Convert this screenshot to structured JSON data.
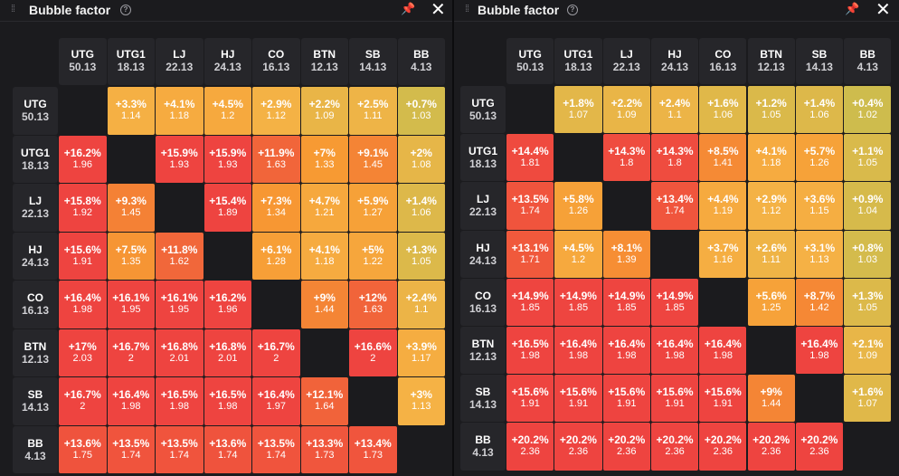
{
  "colors": {
    "stops": [
      "#c8be4e",
      "#f5b245",
      "#f79a33",
      "#f37a36",
      "#ee4440"
    ]
  },
  "left": {
    "title": "Bubble factor",
    "drag_icon": "drag-handle-icon",
    "help_icon": "help-icon",
    "help_glyph": "?",
    "pin_icon": "pin-icon",
    "pin_glyph": "📌",
    "close_icon": "close-icon",
    "close_glyph": "✕",
    "positions": [
      "UTG",
      "UTG1",
      "LJ",
      "HJ",
      "CO",
      "BTN",
      "SB",
      "BB"
    ],
    "stacks": [
      "50.13",
      "18.13",
      "22.13",
      "24.13",
      "16.13",
      "12.13",
      "14.13",
      "4.13"
    ],
    "rows": [
      [
        null,
        {
          "p": "+3.3%",
          "f": "1.14"
        },
        {
          "p": "+4.1%",
          "f": "1.18"
        },
        {
          "p": "+4.5%",
          "f": "1.2"
        },
        {
          "p": "+2.9%",
          "f": "1.12"
        },
        {
          "p": "+2.2%",
          "f": "1.09"
        },
        {
          "p": "+2.5%",
          "f": "1.11"
        },
        {
          "p": "+0.7%",
          "f": "1.03"
        }
      ],
      [
        {
          "p": "+16.2%",
          "f": "1.96"
        },
        null,
        {
          "p": "+15.9%",
          "f": "1.93"
        },
        {
          "p": "+15.9%",
          "f": "1.93"
        },
        {
          "p": "+11.9%",
          "f": "1.63"
        },
        {
          "p": "+7%",
          "f": "1.33"
        },
        {
          "p": "+9.1%",
          "f": "1.45"
        },
        {
          "p": "+2%",
          "f": "1.08"
        }
      ],
      [
        {
          "p": "+15.8%",
          "f": "1.92"
        },
        {
          "p": "+9.3%",
          "f": "1.45"
        },
        null,
        {
          "p": "+15.4%",
          "f": "1.89"
        },
        {
          "p": "+7.3%",
          "f": "1.34"
        },
        {
          "p": "+4.7%",
          "f": "1.21"
        },
        {
          "p": "+5.9%",
          "f": "1.27"
        },
        {
          "p": "+1.4%",
          "f": "1.06"
        }
      ],
      [
        {
          "p": "+15.6%",
          "f": "1.91"
        },
        {
          "p": "+7.5%",
          "f": "1.35"
        },
        {
          "p": "+11.8%",
          "f": "1.62"
        },
        null,
        {
          "p": "+6.1%",
          "f": "1.28"
        },
        {
          "p": "+4.1%",
          "f": "1.18"
        },
        {
          "p": "+5%",
          "f": "1.22"
        },
        {
          "p": "+1.3%",
          "f": "1.05"
        }
      ],
      [
        {
          "p": "+16.4%",
          "f": "1.98"
        },
        {
          "p": "+16.1%",
          "f": "1.95"
        },
        {
          "p": "+16.1%",
          "f": "1.95"
        },
        {
          "p": "+16.2%",
          "f": "1.96"
        },
        null,
        {
          "p": "+9%",
          "f": "1.44"
        },
        {
          "p": "+12%",
          "f": "1.63"
        },
        {
          "p": "+2.4%",
          "f": "1.1"
        }
      ],
      [
        {
          "p": "+17%",
          "f": "2.03"
        },
        {
          "p": "+16.7%",
          "f": "2"
        },
        {
          "p": "+16.8%",
          "f": "2.01"
        },
        {
          "p": "+16.8%",
          "f": "2.01"
        },
        {
          "p": "+16.7%",
          "f": "2"
        },
        null,
        {
          "p": "+16.6%",
          "f": "2"
        },
        {
          "p": "+3.9%",
          "f": "1.17"
        }
      ],
      [
        {
          "p": "+16.7%",
          "f": "2"
        },
        {
          "p": "+16.4%",
          "f": "1.98"
        },
        {
          "p": "+16.5%",
          "f": "1.98"
        },
        {
          "p": "+16.5%",
          "f": "1.98"
        },
        {
          "p": "+16.4%",
          "f": "1.97"
        },
        {
          "p": "+12.1%",
          "f": "1.64"
        },
        null,
        {
          "p": "+3%",
          "f": "1.13"
        }
      ],
      [
        {
          "p": "+13.6%",
          "f": "1.75"
        },
        {
          "p": "+13.5%",
          "f": "1.74"
        },
        {
          "p": "+13.5%",
          "f": "1.74"
        },
        {
          "p": "+13.6%",
          "f": "1.74"
        },
        {
          "p": "+13.5%",
          "f": "1.74"
        },
        {
          "p": "+13.3%",
          "f": "1.73"
        },
        {
          "p": "+13.4%",
          "f": "1.73"
        },
        null
      ]
    ]
  },
  "right": {
    "title": "Bubble factor",
    "drag_icon": "drag-handle-icon",
    "help_icon": "help-icon",
    "help_glyph": "?",
    "pin_icon": "pin-icon",
    "pin_glyph": "📌",
    "close_icon": "close-icon",
    "close_glyph": "✕",
    "positions": [
      "UTG",
      "UTG1",
      "LJ",
      "HJ",
      "CO",
      "BTN",
      "SB",
      "BB"
    ],
    "stacks": [
      "50.13",
      "18.13",
      "22.13",
      "24.13",
      "16.13",
      "12.13",
      "14.13",
      "4.13"
    ],
    "rows": [
      [
        null,
        {
          "p": "+1.8%",
          "f": "1.07"
        },
        {
          "p": "+2.2%",
          "f": "1.09"
        },
        {
          "p": "+2.4%",
          "f": "1.1"
        },
        {
          "p": "+1.6%",
          "f": "1.06"
        },
        {
          "p": "+1.2%",
          "f": "1.05"
        },
        {
          "p": "+1.4%",
          "f": "1.06"
        },
        {
          "p": "+0.4%",
          "f": "1.02"
        }
      ],
      [
        {
          "p": "+14.4%",
          "f": "1.81"
        },
        null,
        {
          "p": "+14.3%",
          "f": "1.8"
        },
        {
          "p": "+14.3%",
          "f": "1.8"
        },
        {
          "p": "+8.5%",
          "f": "1.41"
        },
        {
          "p": "+4.1%",
          "f": "1.18"
        },
        {
          "p": "+5.7%",
          "f": "1.26"
        },
        {
          "p": "+1.1%",
          "f": "1.05"
        }
      ],
      [
        {
          "p": "+13.5%",
          "f": "1.74"
        },
        {
          "p": "+5.8%",
          "f": "1.26"
        },
        null,
        {
          "p": "+13.4%",
          "f": "1.74"
        },
        {
          "p": "+4.4%",
          "f": "1.19"
        },
        {
          "p": "+2.9%",
          "f": "1.12"
        },
        {
          "p": "+3.6%",
          "f": "1.15"
        },
        {
          "p": "+0.9%",
          "f": "1.04"
        }
      ],
      [
        {
          "p": "+13.1%",
          "f": "1.71"
        },
        {
          "p": "+4.5%",
          "f": "1.2"
        },
        {
          "p": "+8.1%",
          "f": "1.39"
        },
        null,
        {
          "p": "+3.7%",
          "f": "1.16"
        },
        {
          "p": "+2.6%",
          "f": "1.11"
        },
        {
          "p": "+3.1%",
          "f": "1.13"
        },
        {
          "p": "+0.8%",
          "f": "1.03"
        }
      ],
      [
        {
          "p": "+14.9%",
          "f": "1.85"
        },
        {
          "p": "+14.9%",
          "f": "1.85"
        },
        {
          "p": "+14.9%",
          "f": "1.85"
        },
        {
          "p": "+14.9%",
          "f": "1.85"
        },
        null,
        {
          "p": "+5.6%",
          "f": "1.25"
        },
        {
          "p": "+8.7%",
          "f": "1.42"
        },
        {
          "p": "+1.3%",
          "f": "1.05"
        }
      ],
      [
        {
          "p": "+16.5%",
          "f": "1.98"
        },
        {
          "p": "+16.4%",
          "f": "1.98"
        },
        {
          "p": "+16.4%",
          "f": "1.98"
        },
        {
          "p": "+16.4%",
          "f": "1.98"
        },
        {
          "p": "+16.4%",
          "f": "1.98"
        },
        null,
        {
          "p": "+16.4%",
          "f": "1.98"
        },
        {
          "p": "+2.1%",
          "f": "1.09"
        }
      ],
      [
        {
          "p": "+15.6%",
          "f": "1.91"
        },
        {
          "p": "+15.6%",
          "f": "1.91"
        },
        {
          "p": "+15.6%",
          "f": "1.91"
        },
        {
          "p": "+15.6%",
          "f": "1.91"
        },
        {
          "p": "+15.6%",
          "f": "1.91"
        },
        {
          "p": "+9%",
          "f": "1.44"
        },
        null,
        {
          "p": "+1.6%",
          "f": "1.07"
        }
      ],
      [
        {
          "p": "+20.2%",
          "f": "2.36"
        },
        {
          "p": "+20.2%",
          "f": "2.36"
        },
        {
          "p": "+20.2%",
          "f": "2.36"
        },
        {
          "p": "+20.2%",
          "f": "2.36"
        },
        {
          "p": "+20.2%",
          "f": "2.36"
        },
        {
          "p": "+20.2%",
          "f": "2.36"
        },
        {
          "p": "+20.2%",
          "f": "2.36"
        },
        null
      ]
    ]
  }
}
